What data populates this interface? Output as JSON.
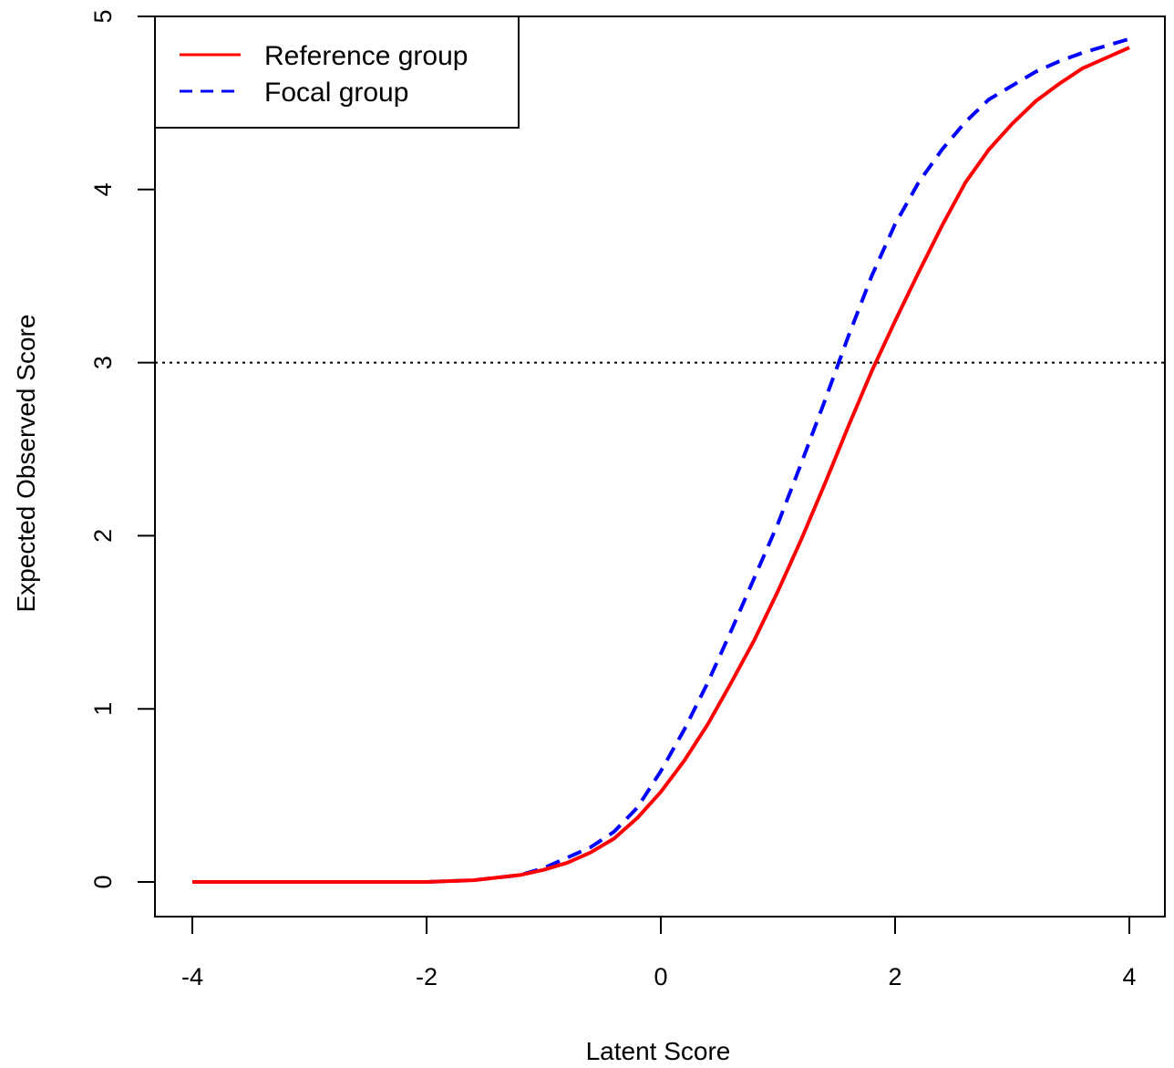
{
  "chart_data": {
    "type": "line",
    "title": "",
    "xlabel": "Latent Score",
    "ylabel": "Expected Observed Score",
    "xlim": [
      -4,
      4
    ],
    "ylim": [
      0,
      5
    ],
    "x_ticks": [
      "-4",
      "-2",
      "0",
      "2",
      "4"
    ],
    "y_ticks": [
      "0",
      "1",
      "2",
      "3",
      "4",
      "5"
    ],
    "grid": false,
    "legend_position": "top-left",
    "reference_line": {
      "y": 3,
      "style": "dotted",
      "color": "#000000"
    },
    "series": [
      {
        "name": "Reference group",
        "color": "#ff0000",
        "style": "solid",
        "x": [
          -4,
          -3.5,
          -3,
          -2.5,
          -2,
          -1.6,
          -1.2,
          -1,
          -0.8,
          -0.6,
          -0.4,
          -0.2,
          0,
          0.2,
          0.4,
          0.6,
          0.8,
          1,
          1.2,
          1.4,
          1.6,
          1.8,
          2,
          2.2,
          2.4,
          2.6,
          2.8,
          3,
          3.2,
          3.4,
          3.6,
          3.8,
          4
        ],
        "y": [
          0,
          0,
          0,
          0,
          0,
          0.01,
          0.04,
          0.07,
          0.11,
          0.17,
          0.25,
          0.37,
          0.52,
          0.7,
          0.91,
          1.15,
          1.4,
          1.68,
          1.98,
          2.3,
          2.63,
          2.95,
          3.24,
          3.52,
          3.79,
          4.04,
          4.23,
          4.38,
          4.51,
          4.61,
          4.7,
          4.76,
          4.82
        ]
      },
      {
        "name": "Focal group",
        "color": "#0000ff",
        "style": "dashed",
        "x": [
          -4,
          -3.5,
          -3,
          -2.5,
          -2,
          -1.6,
          -1.2,
          -1,
          -0.8,
          -0.6,
          -0.4,
          -0.2,
          0,
          0.2,
          0.4,
          0.6,
          0.8,
          1,
          1.2,
          1.4,
          1.6,
          1.8,
          2,
          2.2,
          2.4,
          2.6,
          2.8,
          3,
          3.2,
          3.4,
          3.6,
          3.8,
          4
        ],
        "y": [
          0,
          0,
          0,
          0,
          0,
          0.01,
          0.04,
          0.08,
          0.14,
          0.2,
          0.29,
          0.43,
          0.64,
          0.88,
          1.15,
          1.45,
          1.76,
          2.07,
          2.42,
          2.78,
          3.15,
          3.5,
          3.8,
          4.04,
          4.23,
          4.39,
          4.52,
          4.6,
          4.68,
          4.74,
          4.79,
          4.83,
          4.87
        ]
      }
    ]
  }
}
